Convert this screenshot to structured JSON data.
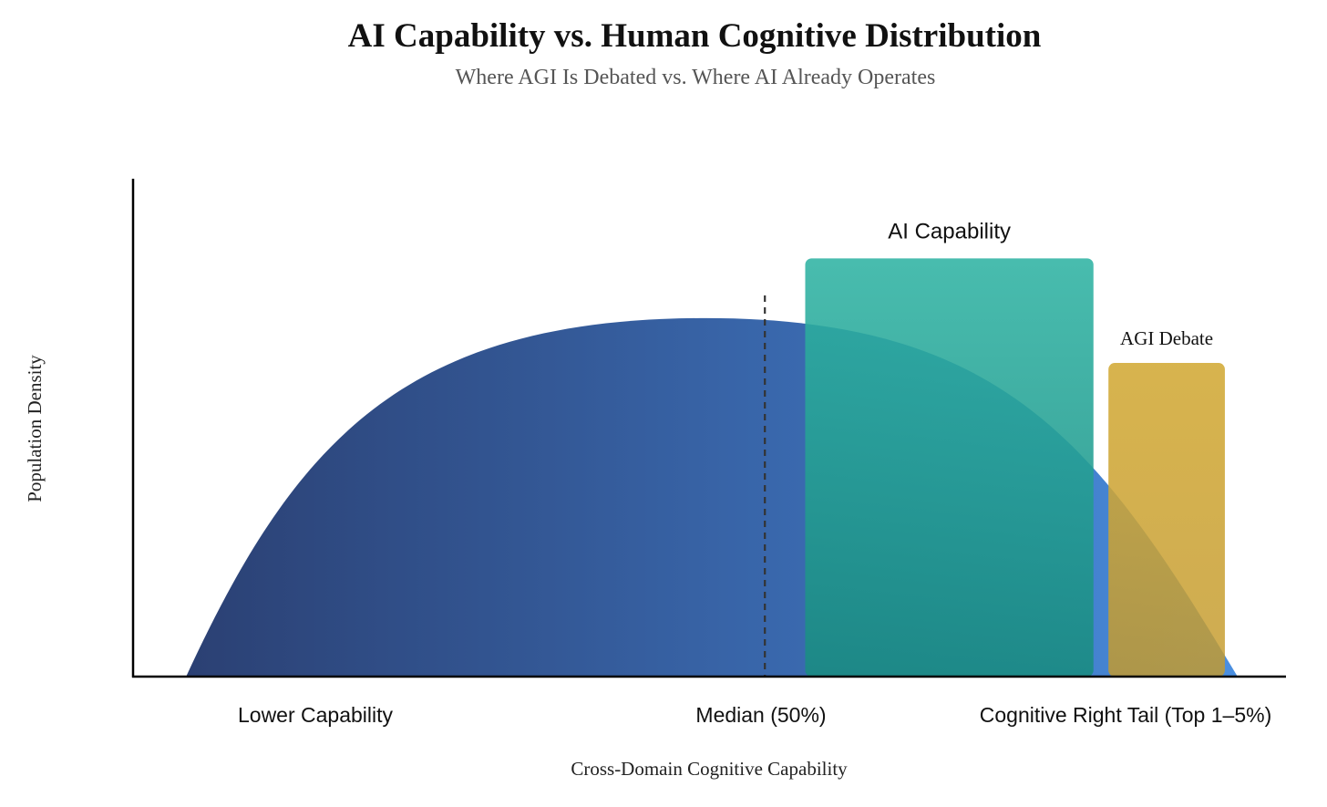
{
  "chart_data": {
    "type": "area",
    "title": "AI Capability vs. Human Cognitive Distribution",
    "subtitle": "Where AGI Is Debated vs. Where AI Already Operates",
    "xlabel": "Cross-Domain Cognitive Capability",
    "ylabel": "Population Density",
    "x_tick_labels": [
      "Lower Capability",
      "Median (50%)",
      "Cognitive Right Tail (Top 1–5%)"
    ],
    "xlim": [
      0,
      100
    ],
    "ylim": [
      0,
      100
    ],
    "grid": false,
    "median_x": 54.8,
    "distribution": {
      "start_x": 4.6,
      "end_x": 95.8,
      "peak_x": 49.7,
      "peak_y": 72,
      "colors": [
        "#2b4073",
        "#3a6ab0",
        "#4a8fe0"
      ]
    },
    "regions": [
      {
        "label": "AI Capability",
        "x_start": 58.3,
        "x_end": 83.3,
        "height": 84,
        "color": "#2fb3a3"
      },
      {
        "label": "AGI Debate",
        "x_start": 84.6,
        "x_end": 94.7,
        "height": 63,
        "color": "#d4ad3e"
      }
    ]
  }
}
